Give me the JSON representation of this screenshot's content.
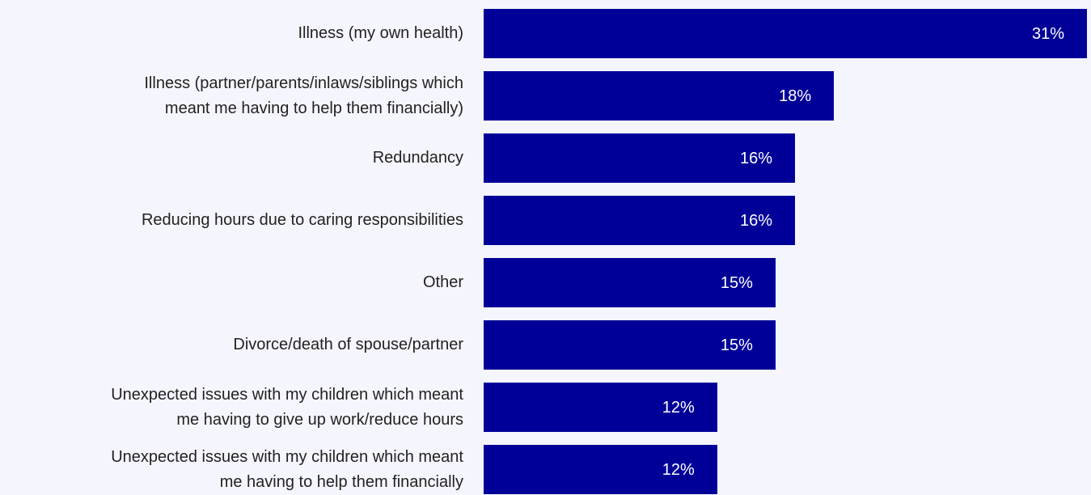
{
  "chart_data": {
    "type": "bar",
    "orientation": "horizontal",
    "categories": [
      "Illness (my own health)",
      "Illness (partner/parents/inlaws/siblings which\nmeant me having to help them financially)",
      "Redundancy",
      "Reducing hours due to caring responsibilities",
      "Other",
      "Divorce/death of spouse/partner",
      "Unexpected issues with my children which meant\nme having to give up work/reduce hours",
      "Unexpected issues with my children which meant\nme having to help them financially"
    ],
    "values": [
      31,
      18,
      16,
      16,
      15,
      15,
      12,
      12
    ],
    "value_labels": [
      "31%",
      "18%",
      "16%",
      "16%",
      "15%",
      "15%",
      "12%",
      "12%"
    ],
    "unit": "%",
    "xlim": [
      0,
      31
    ],
    "grid": false,
    "bar_color": "#000099",
    "label_color": "#ffffff",
    "background": "#f5f5fd"
  }
}
